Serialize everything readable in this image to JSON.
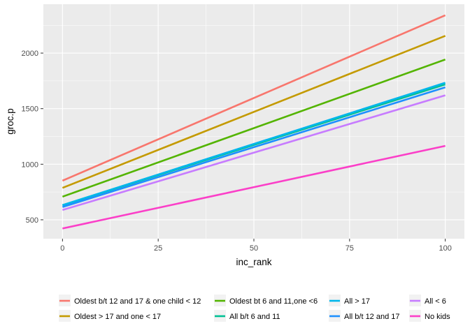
{
  "chart_data": {
    "type": "line",
    "title": "",
    "xlabel": "inc_rank",
    "ylabel": "groc.p",
    "xlim": [
      -5,
      105
    ],
    "ylim": [
      330,
      2440
    ],
    "x_ticks": [
      0,
      25,
      50,
      75,
      100
    ],
    "x_tick_labels": [
      "0",
      "25",
      "50",
      "75",
      "100"
    ],
    "y_ticks": [
      500,
      1000,
      1500,
      2000
    ],
    "y_tick_labels": [
      "500",
      "1000",
      "1500",
      "2000"
    ],
    "grid": true,
    "legend_placement": "bottom",
    "series": [
      {
        "name": "Oldest b/t 12 and 17 & one child < 12",
        "color": "#F8766D",
        "x": [
          0,
          100
        ],
        "y": [
          852,
          2340
        ]
      },
      {
        "name": "Oldest > 17 and one < 17",
        "color": "#C49A00",
        "x": [
          0,
          100
        ],
        "y": [
          787,
          2155
        ]
      },
      {
        "name": "Oldest bt 6 and 11,one <6",
        "color": "#53B400",
        "x": [
          0,
          100
        ],
        "y": [
          708,
          1942
        ]
      },
      {
        "name": "All b/t 6 and 11",
        "color": "#00C094",
        "x": [
          0,
          100
        ],
        "y": [
          630,
          1718
        ]
      },
      {
        "name": "All > 17",
        "color": "#00B6EB",
        "x": [
          0,
          100
        ],
        "y": [
          632,
          1733
        ]
      },
      {
        "name": "All b/t 12 and 17",
        "color": "#1E90FF",
        "x": [
          0,
          100
        ],
        "y": [
          615,
          1692
        ]
      },
      {
        "name": "All < 6",
        "color": "#C77CFF",
        "x": [
          0,
          100
        ],
        "y": [
          588,
          1620
        ]
      },
      {
        "name": "No kids",
        "color": "#FB3FC8",
        "x": [
          0,
          100
        ],
        "y": [
          422,
          1165
        ]
      }
    ],
    "legend_order": [
      "Oldest b/t 12 and 17 & one child < 12",
      "Oldest bt 6 and 11,one <6",
      "All > 17",
      "All < 6",
      "Oldest > 17 and one < 17",
      "All b/t 6 and 11",
      "All b/t 12 and 17",
      "No kids"
    ]
  }
}
